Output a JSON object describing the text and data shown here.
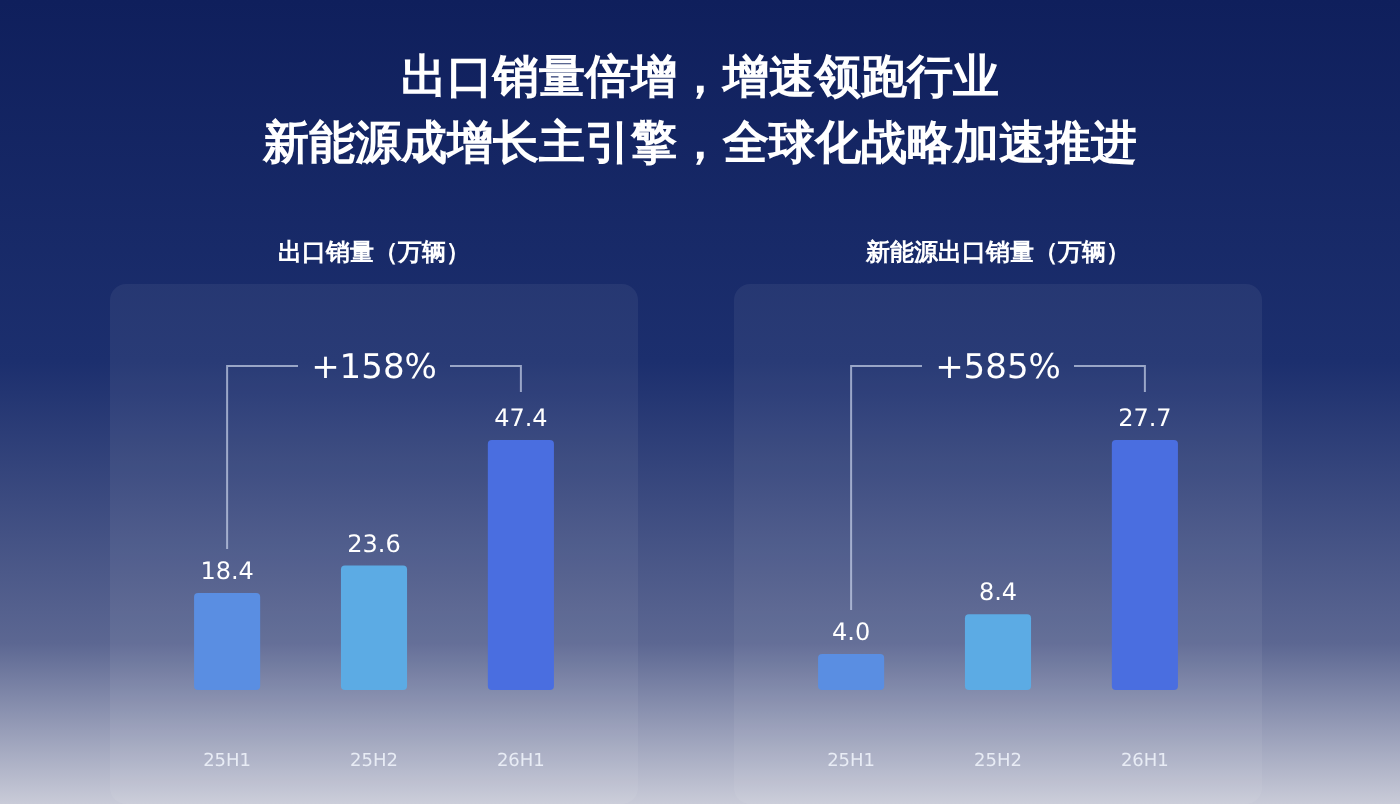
{
  "chart_data": [
    {
      "type": "other",
      "title": "出口销量倍增，增速领跑行业",
      "subtitle": "新能源成增长主引擎，全球化战略加速推进"
    },
    {
      "type": "bar",
      "title": "出口销量（万辆）",
      "categories": [
        "25H1",
        "25H2",
        "26H1"
      ],
      "values": [
        18.4,
        23.6,
        47.4
      ],
      "colors": [
        "#5a8ee2",
        "#5cabe4",
        "#4a6ee0"
      ],
      "value_labels": [
        "18.4",
        "23.6",
        "47.4"
      ],
      "annotations": [
        "+158%"
      ]
    },
    {
      "type": "bar",
      "title": "新能源出口销量（万辆）",
      "categories": [
        "25H1",
        "25H2",
        "26H1"
      ],
      "values": [
        4.0,
        8.4,
        27.7
      ],
      "colors": [
        "#5a8ee2",
        "#5cabe4",
        "#4a6ee0"
      ],
      "value_labels": [
        "4.0",
        "8.4",
        "27.7"
      ],
      "annotations": [
        "+585%"
      ]
    }
  ]
}
